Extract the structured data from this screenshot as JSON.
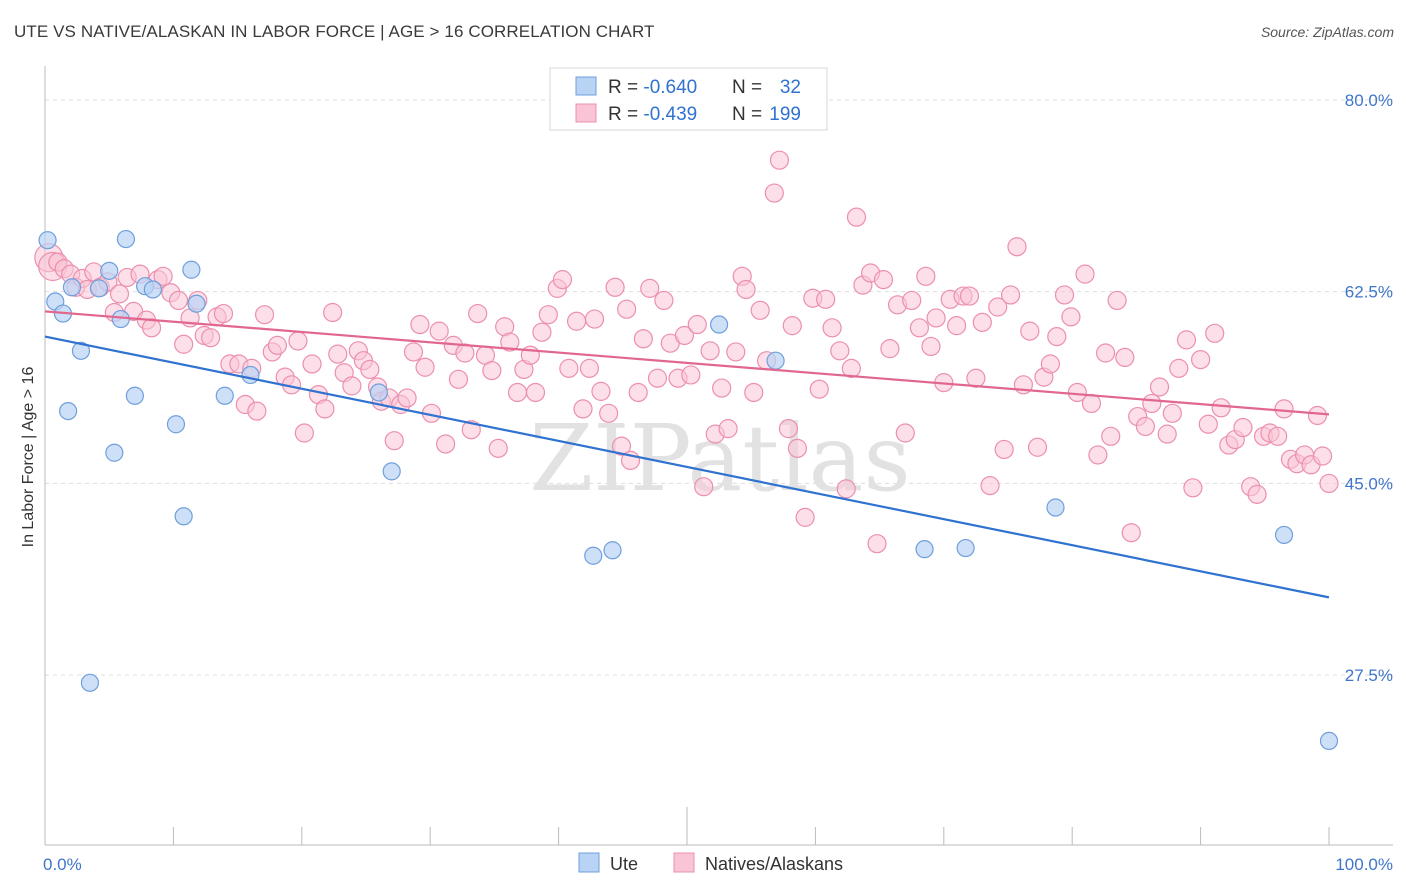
{
  "title": "UTE VS NATIVE/ALASKAN IN LABOR FORCE | AGE > 16 CORRELATION CHART",
  "source": "Source: ZipAtlas.com",
  "watermark": "ZIPatlas",
  "colors": {
    "ute_fill": "#b9d3f5",
    "ute_stroke": "#6f9fdc",
    "ute_line": "#2f72d0",
    "native_fill": "#f9c5d6",
    "native_stroke": "#ec8fae",
    "native_line": "#e2678f",
    "tick_text": "#3f76c9",
    "grid": "#dddddd"
  },
  "legend": {
    "ute": {
      "r_label": "R = ",
      "r_value": "-0.640",
      "n_label": "N = ",
      "n_value": "32"
    },
    "native": {
      "r_label": "R = ",
      "r_value": "-0.439",
      "n_label": "N = ",
      "n_value": "199"
    }
  },
  "chart_data": {
    "type": "scatter",
    "ylabel": "In Labor Force | Age > 16",
    "xlim": [
      0,
      100
    ],
    "ylim": [
      12,
      82
    ],
    "x_tick_labels": [
      "0.0%",
      "100.0%"
    ],
    "y_ticks": [
      27.5,
      45.0,
      62.5,
      80.0
    ],
    "y_tick_labels": [
      "27.5%",
      "45.0%",
      "62.5%",
      "80.0%"
    ],
    "grid": true,
    "legend_position": "top-center",
    "series": [
      {
        "name": "Ute",
        "trend": {
          "x": [
            0,
            100
          ],
          "y": [
            58.4,
            34.6
          ]
        },
        "points": [
          [
            0.2,
            67.2
          ],
          [
            0.8,
            61.6
          ],
          [
            1.4,
            60.5
          ],
          [
            2.1,
            62.9
          ],
          [
            2.8,
            57.1
          ],
          [
            1.8,
            51.6
          ],
          [
            3.5,
            26.8
          ],
          [
            4.2,
            62.8
          ],
          [
            5.0,
            64.4
          ],
          [
            5.4,
            47.8
          ],
          [
            5.9,
            60.0
          ],
          [
            6.3,
            67.3
          ],
          [
            7.0,
            53.0
          ],
          [
            7.8,
            63.0
          ],
          [
            8.4,
            62.7
          ],
          [
            10.2,
            50.4
          ],
          [
            10.8,
            42.0
          ],
          [
            11.4,
            64.5
          ],
          [
            11.8,
            61.4
          ],
          [
            14.0,
            53.0
          ],
          [
            16.0,
            54.9
          ],
          [
            26.0,
            53.3
          ],
          [
            27.0,
            46.1
          ],
          [
            42.7,
            38.4
          ],
          [
            44.2,
            38.9
          ],
          [
            52.5,
            59.5
          ],
          [
            56.9,
            56.2
          ],
          [
            68.5,
            39.0
          ],
          [
            71.7,
            39.1
          ],
          [
            78.7,
            42.8
          ],
          [
            96.5,
            40.3
          ],
          [
            100.0,
            21.5
          ]
        ]
      },
      {
        "name": "Natives/Alaskans",
        "trend": {
          "x": [
            0,
            100
          ],
          "y": [
            60.7,
            51.3
          ]
        },
        "points": [
          [
            0.3,
            65.6
          ],
          [
            0.6,
            64.8
          ],
          [
            1.0,
            65.2
          ],
          [
            1.5,
            64.6
          ],
          [
            2.0,
            64.1
          ],
          [
            2.4,
            62.9
          ],
          [
            2.9,
            63.7
          ],
          [
            3.3,
            62.7
          ],
          [
            3.8,
            64.3
          ],
          [
            4.3,
            62.9
          ],
          [
            4.9,
            63.4
          ],
          [
            5.4,
            60.6
          ],
          [
            5.8,
            62.3
          ],
          [
            6.4,
            63.8
          ],
          [
            6.9,
            60.7
          ],
          [
            7.4,
            64.1
          ],
          [
            7.9,
            59.9
          ],
          [
            8.3,
            59.2
          ],
          [
            8.8,
            63.6
          ],
          [
            9.2,
            63.9
          ],
          [
            9.8,
            62.4
          ],
          [
            10.4,
            61.7
          ],
          [
            10.8,
            57.7
          ],
          [
            11.3,
            60.1
          ],
          [
            11.9,
            61.7
          ],
          [
            12.4,
            58.5
          ],
          [
            12.9,
            58.3
          ],
          [
            13.4,
            60.2
          ],
          [
            13.9,
            60.5
          ],
          [
            14.4,
            55.9
          ],
          [
            15.1,
            55.9
          ],
          [
            15.6,
            52.2
          ],
          [
            16.1,
            55.5
          ],
          [
            16.5,
            51.6
          ],
          [
            17.1,
            60.4
          ],
          [
            17.7,
            57.0
          ],
          [
            18.1,
            57.6
          ],
          [
            18.7,
            54.7
          ],
          [
            19.2,
            54.0
          ],
          [
            19.7,
            58.0
          ],
          [
            20.2,
            49.6
          ],
          [
            20.8,
            55.9
          ],
          [
            21.3,
            53.1
          ],
          [
            21.8,
            51.8
          ],
          [
            22.4,
            60.6
          ],
          [
            22.8,
            56.8
          ],
          [
            23.3,
            55.1
          ],
          [
            23.9,
            53.9
          ],
          [
            24.4,
            57.1
          ],
          [
            24.8,
            56.2
          ],
          [
            25.3,
            55.4
          ],
          [
            25.9,
            53.8
          ],
          [
            26.2,
            52.5
          ],
          [
            26.8,
            52.8
          ],
          [
            27.2,
            48.9
          ],
          [
            27.7,
            52.2
          ],
          [
            28.2,
            52.8
          ],
          [
            28.7,
            57.0
          ],
          [
            29.2,
            59.5
          ],
          [
            29.6,
            55.6
          ],
          [
            30.1,
            51.4
          ],
          [
            30.7,
            58.9
          ],
          [
            31.2,
            48.6
          ],
          [
            31.8,
            57.6
          ],
          [
            32.2,
            54.5
          ],
          [
            32.7,
            56.9
          ],
          [
            33.2,
            49.9
          ],
          [
            33.7,
            60.5
          ],
          [
            34.3,
            56.7
          ],
          [
            34.8,
            55.3
          ],
          [
            35.3,
            48.2
          ],
          [
            35.8,
            59.3
          ],
          [
            36.2,
            57.9
          ],
          [
            36.8,
            53.3
          ],
          [
            37.3,
            55.4
          ],
          [
            37.8,
            56.7
          ],
          [
            38.2,
            53.3
          ],
          [
            38.7,
            58.8
          ],
          [
            39.2,
            60.4
          ],
          [
            39.9,
            62.8
          ],
          [
            40.3,
            63.6
          ],
          [
            40.8,
            55.5
          ],
          [
            41.4,
            59.8
          ],
          [
            41.9,
            51.8
          ],
          [
            42.4,
            55.5
          ],
          [
            42.8,
            60.0
          ],
          [
            43.3,
            53.4
          ],
          [
            43.9,
            51.4
          ],
          [
            44.4,
            62.9
          ],
          [
            44.9,
            48.4
          ],
          [
            45.3,
            60.9
          ],
          [
            45.6,
            47.1
          ],
          [
            46.2,
            53.3
          ],
          [
            46.6,
            58.2
          ],
          [
            47.1,
            62.8
          ],
          [
            47.7,
            54.6
          ],
          [
            48.2,
            61.7
          ],
          [
            48.7,
            57.8
          ],
          [
            49.3,
            54.6
          ],
          [
            49.8,
            58.5
          ],
          [
            50.3,
            54.9
          ],
          [
            50.8,
            59.5
          ],
          [
            51.3,
            44.7
          ],
          [
            51.8,
            57.1
          ],
          [
            52.2,
            49.5
          ],
          [
            52.7,
            53.7
          ],
          [
            53.2,
            50.0
          ],
          [
            53.8,
            57.0
          ],
          [
            54.3,
            63.9
          ],
          [
            54.6,
            62.7
          ],
          [
            55.2,
            53.3
          ],
          [
            55.7,
            60.8
          ],
          [
            56.2,
            56.2
          ],
          [
            56.8,
            71.5
          ],
          [
            57.2,
            74.5
          ],
          [
            57.9,
            50.0
          ],
          [
            58.2,
            59.4
          ],
          [
            58.6,
            48.2
          ],
          [
            59.2,
            41.9
          ],
          [
            59.8,
            61.9
          ],
          [
            60.3,
            53.6
          ],
          [
            60.8,
            61.8
          ],
          [
            61.3,
            59.2
          ],
          [
            61.9,
            57.1
          ],
          [
            62.4,
            44.5
          ],
          [
            62.8,
            55.5
          ],
          [
            63.2,
            69.3
          ],
          [
            63.7,
            63.1
          ],
          [
            64.3,
            64.2
          ],
          [
            64.8,
            39.5
          ],
          [
            65.3,
            63.6
          ],
          [
            65.8,
            57.3
          ],
          [
            66.4,
            61.3
          ],
          [
            67.0,
            49.6
          ],
          [
            67.5,
            61.7
          ],
          [
            68.1,
            59.2
          ],
          [
            68.6,
            63.9
          ],
          [
            69.0,
            57.5
          ],
          [
            69.4,
            60.1
          ],
          [
            70.0,
            54.2
          ],
          [
            70.5,
            61.8
          ],
          [
            71.0,
            59.4
          ],
          [
            71.5,
            62.1
          ],
          [
            72.0,
            62.1
          ],
          [
            72.5,
            54.6
          ],
          [
            73.0,
            59.7
          ],
          [
            73.6,
            44.8
          ],
          [
            74.2,
            61.1
          ],
          [
            74.7,
            48.1
          ],
          [
            75.2,
            62.2
          ],
          [
            75.7,
            66.6
          ],
          [
            76.2,
            54.0
          ],
          [
            76.7,
            58.9
          ],
          [
            77.3,
            48.3
          ],
          [
            77.8,
            54.7
          ],
          [
            78.3,
            55.9
          ],
          [
            78.8,
            58.4
          ],
          [
            79.4,
            62.2
          ],
          [
            79.9,
            60.2
          ],
          [
            80.4,
            53.3
          ],
          [
            81.0,
            64.1
          ],
          [
            81.5,
            52.3
          ],
          [
            82.0,
            47.6
          ],
          [
            82.6,
            56.9
          ],
          [
            83.0,
            49.3
          ],
          [
            83.5,
            61.7
          ],
          [
            84.1,
            56.5
          ],
          [
            84.6,
            40.5
          ],
          [
            85.1,
            51.1
          ],
          [
            85.7,
            50.2
          ],
          [
            86.2,
            52.3
          ],
          [
            86.8,
            53.8
          ],
          [
            87.4,
            49.5
          ],
          [
            87.8,
            51.4
          ],
          [
            88.3,
            55.5
          ],
          [
            88.9,
            58.1
          ],
          [
            89.4,
            44.6
          ],
          [
            90.0,
            56.3
          ],
          [
            90.6,
            50.4
          ],
          [
            91.1,
            58.7
          ],
          [
            91.6,
            51.9
          ],
          [
            92.2,
            48.5
          ],
          [
            92.7,
            49.0
          ],
          [
            93.3,
            50.1
          ],
          [
            93.9,
            44.7
          ],
          [
            94.4,
            44.0
          ],
          [
            94.9,
            49.3
          ],
          [
            95.4,
            49.6
          ],
          [
            96.0,
            49.3
          ],
          [
            96.5,
            51.8
          ],
          [
            97.0,
            47.2
          ],
          [
            97.5,
            46.8
          ],
          [
            98.1,
            47.6
          ],
          [
            98.6,
            46.7
          ],
          [
            99.1,
            51.2
          ],
          [
            99.5,
            47.5
          ],
          [
            100.0,
            45.0
          ]
        ]
      }
    ]
  },
  "bottom_legend": {
    "ute": "Ute",
    "native": "Natives/Alaskans"
  }
}
